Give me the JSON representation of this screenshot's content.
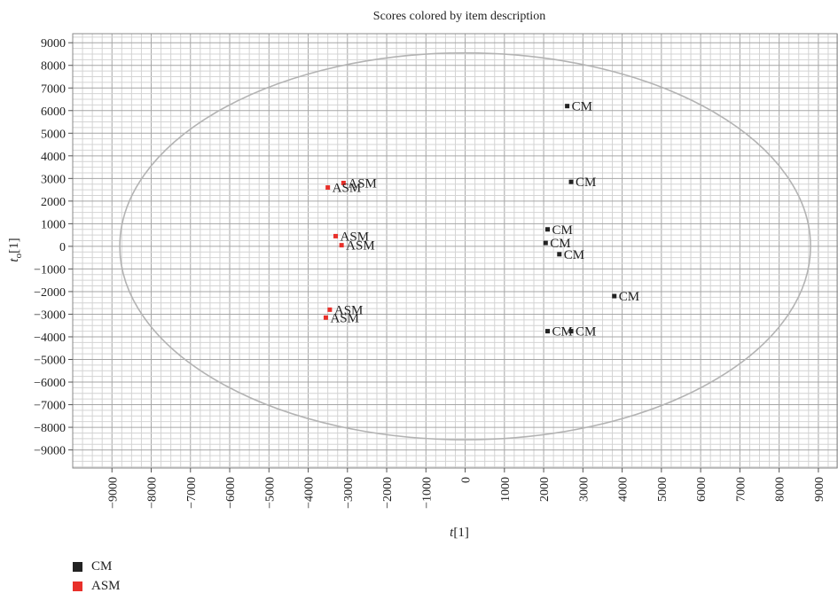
{
  "chart_data": {
    "type": "scatter",
    "title": "Scores colored by item description",
    "xlabel": "t[1]",
    "ylabel": "t_o[1]",
    "xlim": [
      -10000,
      9500
    ],
    "ylim": [
      -9800,
      9400
    ],
    "xticks": [
      -9000,
      -8000,
      -7000,
      -6000,
      -5000,
      -4000,
      -3000,
      -2000,
      -1000,
      0,
      1000,
      2000,
      3000,
      4000,
      5000,
      6000,
      7000,
      8000,
      9000
    ],
    "yticks": [
      9000,
      8000,
      7000,
      6000,
      5000,
      4000,
      3000,
      2000,
      1000,
      0,
      -1000,
      -2000,
      -3000,
      -4000,
      -5000,
      -6000,
      -7000,
      -8000,
      -9000
    ],
    "grid": true,
    "ellipse": {
      "rx": 8800,
      "ry": 8550
    },
    "legend_position": "bottom-left",
    "series": [
      {
        "name": "CM",
        "color": "#222222",
        "points": [
          {
            "x": 2600,
            "y": 6200,
            "label": "CM"
          },
          {
            "x": 2700,
            "y": 2850,
            "label": "CM"
          },
          {
            "x": 2100,
            "y": 750,
            "label": "CM"
          },
          {
            "x": 2050,
            "y": 150,
            "label": "CM"
          },
          {
            "x": 2400,
            "y": -350,
            "label": "CM"
          },
          {
            "x": 3800,
            "y": -2200,
            "label": "CM"
          },
          {
            "x": 2700,
            "y": -3750,
            "label": "CM"
          },
          {
            "x": 2100,
            "y": -3750,
            "label": "CM"
          }
        ]
      },
      {
        "name": "ASM",
        "color": "#e8302a",
        "points": [
          {
            "x": -3100,
            "y": 2800,
            "label": "ASM"
          },
          {
            "x": -3500,
            "y": 2600,
            "label": "ASM"
          },
          {
            "x": -3300,
            "y": 450,
            "label": "ASM"
          },
          {
            "x": -3150,
            "y": 50,
            "label": "ASM"
          },
          {
            "x": -3450,
            "y": -2800,
            "label": "ASM"
          },
          {
            "x": -3550,
            "y": -3150,
            "label": "ASM"
          }
        ]
      }
    ]
  }
}
